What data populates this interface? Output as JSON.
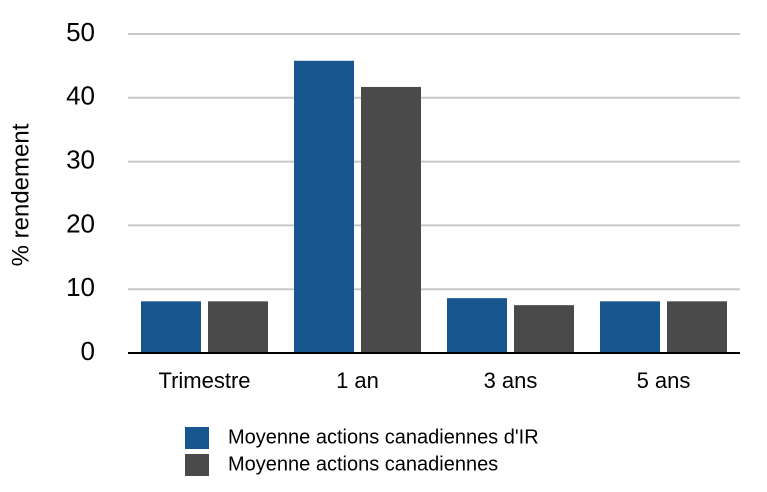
{
  "chart_data": {
    "type": "bar",
    "y_label": "% rendement",
    "categories": [
      "Trimestre",
      "1 an",
      "3 ans",
      "5 ans"
    ],
    "series": [
      {
        "name": "Moyenne actions canadiennes d'IR",
        "color": "#17568f",
        "values": [
          8.1,
          45.8,
          8.6,
          8.1
        ]
      },
      {
        "name": "Moyenne actions canadiennes",
        "color": "#4a4a4a",
        "values": [
          8.1,
          41.7,
          7.5,
          8.1
        ]
      }
    ],
    "ylim": [
      0,
      50
    ],
    "yticks": [
      0,
      10,
      20,
      30,
      40,
      50
    ],
    "grid": true,
    "legend": "bottom"
  }
}
